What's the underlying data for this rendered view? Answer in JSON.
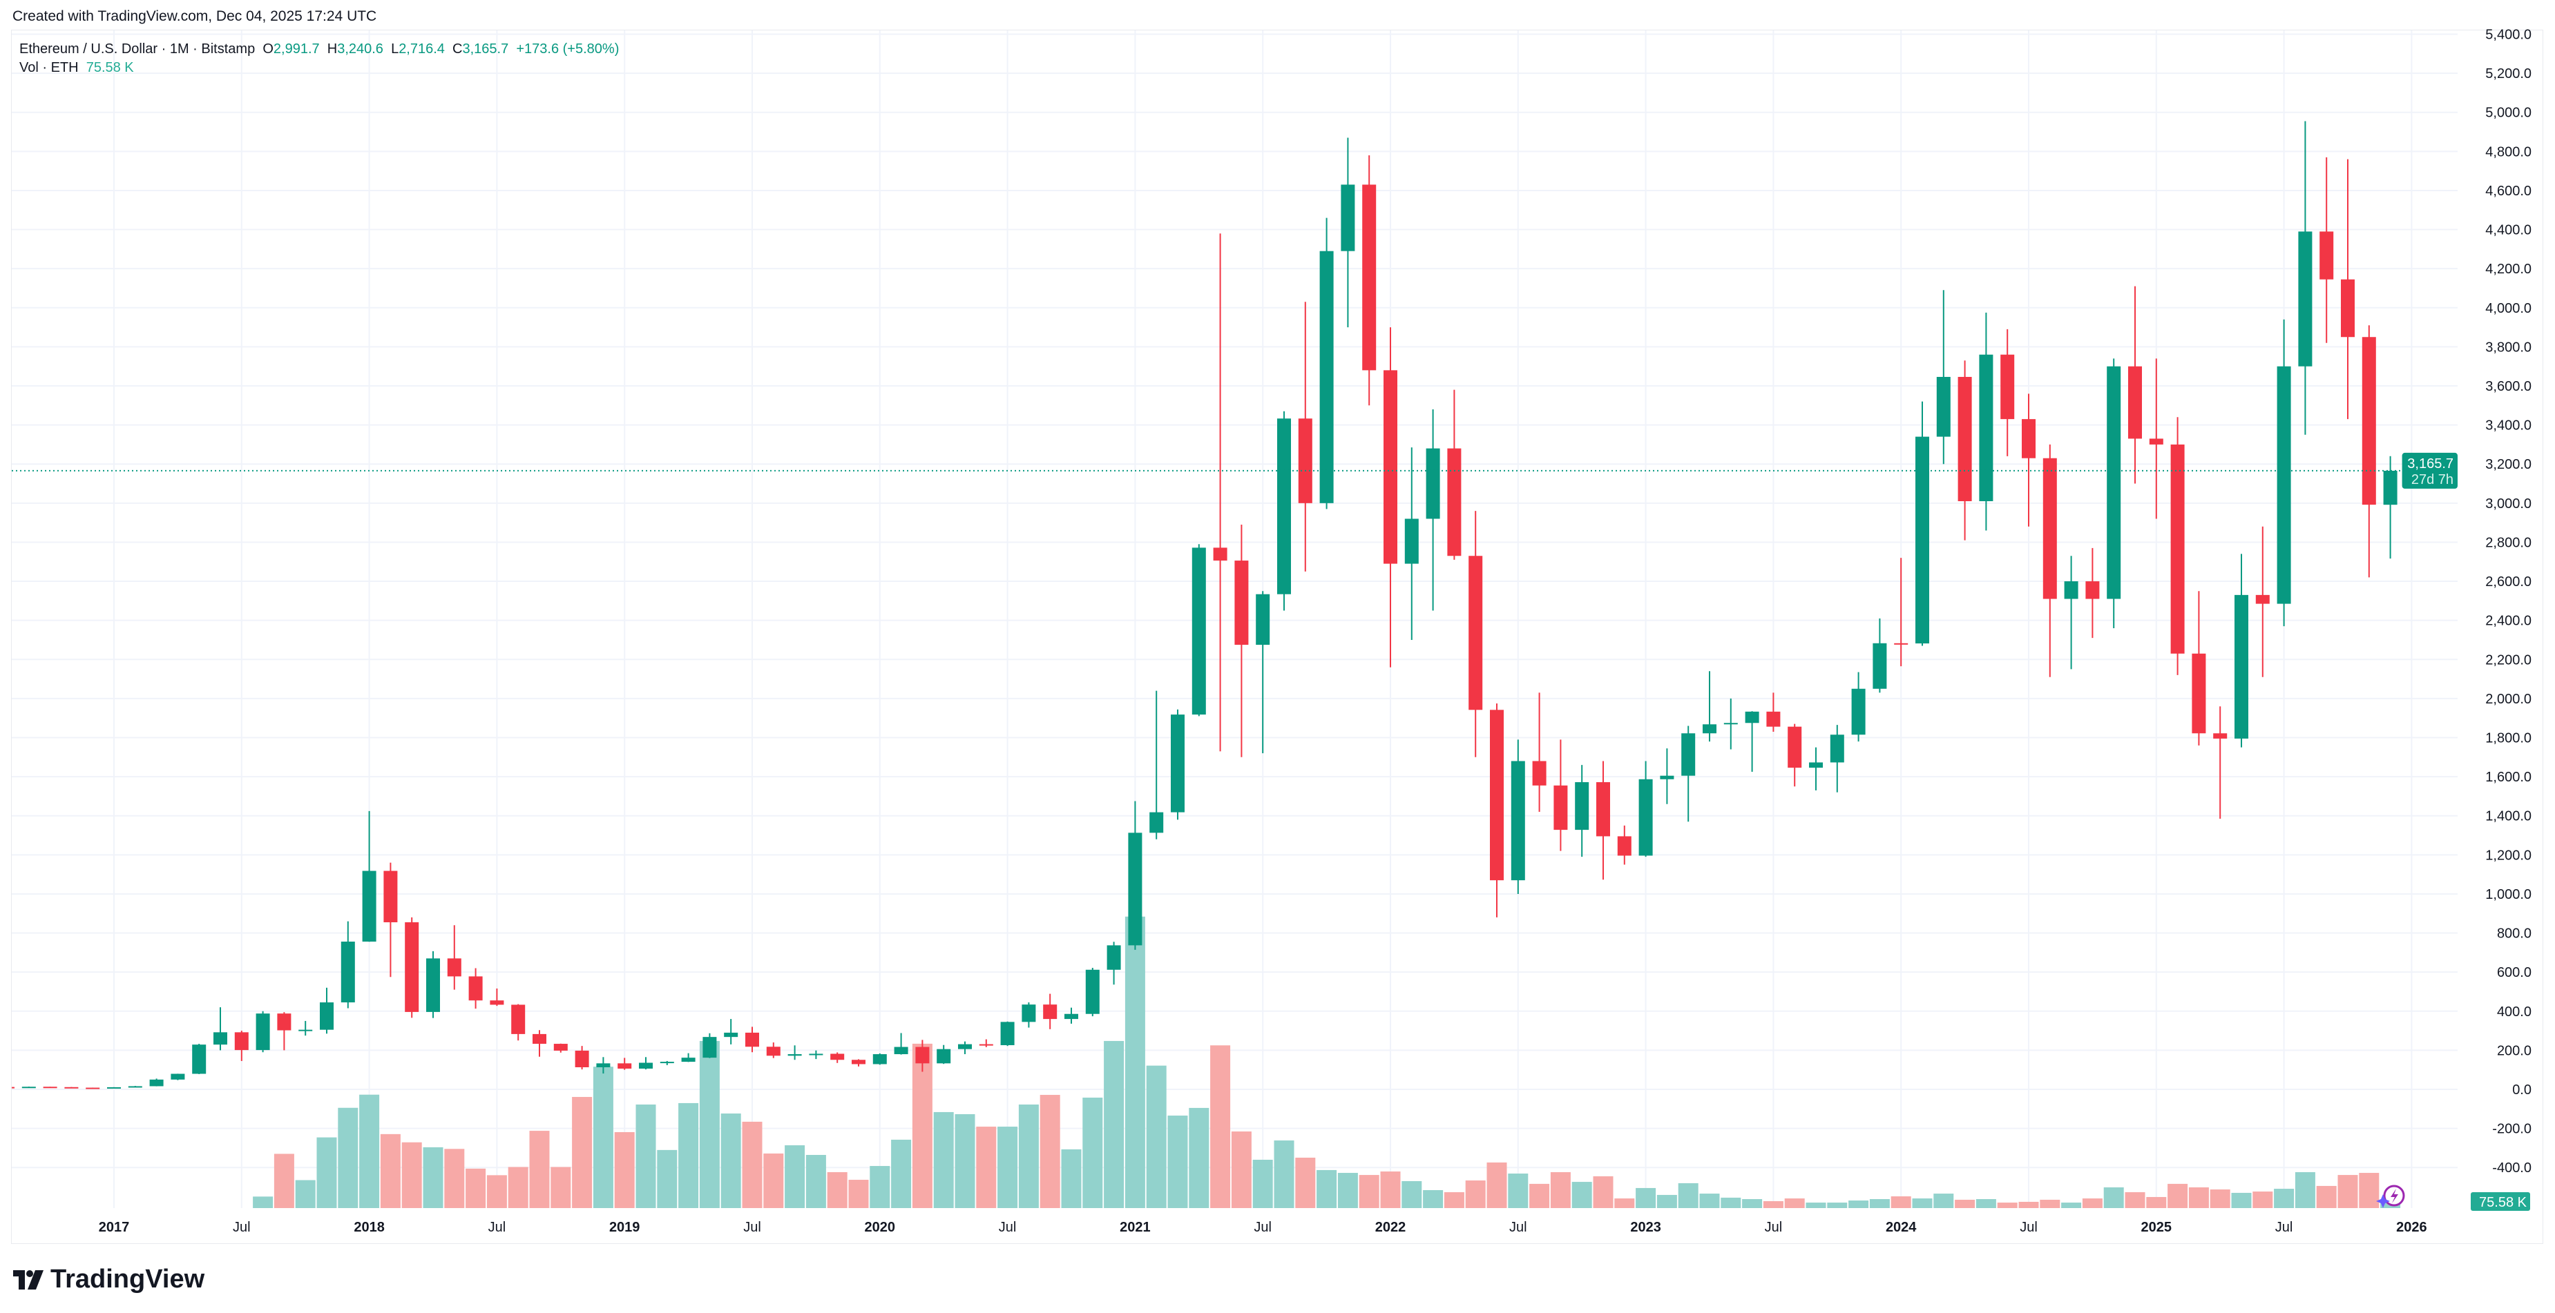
{
  "header": {
    "created": "Created with TradingView.com, Dec 04, 2025 17:24 UTC"
  },
  "legend": {
    "symbol": "Ethereum / U.S. Dollar · 1M · Bitstamp",
    "o_label": "O",
    "o": "2,991.7",
    "h_label": "H",
    "h": "3,240.6",
    "l_label": "L",
    "l": "2,716.4",
    "c_label": "C",
    "c": "3,165.7",
    "change": "+173.6 (+5.80%)",
    "vol_label": "Vol · ETH",
    "vol": "75.58 K"
  },
  "price_tag": {
    "price": "3,165.7",
    "countdown": "27d 7h"
  },
  "volume_tag": "75.58 K",
  "brand": "TradingView",
  "colors": {
    "up": "#089981",
    "down": "#f23645",
    "vol_up": "#92d2cc",
    "vol_down": "#f7a9a7",
    "grid": "#f0f3fa"
  },
  "chart_data": {
    "type": "candlestick",
    "interval": "1M",
    "ylim": [
      -400,
      5400
    ],
    "grid": true,
    "y_ticks": [
      "-400.0",
      "-200.0",
      "0.0",
      "200.0",
      "400.0",
      "600.0",
      "800.0",
      "1,000.0",
      "1,200.0",
      "1,400.0",
      "1,600.0",
      "1,800.0",
      "2,000.0",
      "2,200.0",
      "2,400.0",
      "2,600.0",
      "2,800.0",
      "3,000.0",
      "3,200.0",
      "3,400.0",
      "3,600.0",
      "3,800.0",
      "4,000.0",
      "4,200.0",
      "4,400.0",
      "4,600.0",
      "4,800.0",
      "5,000.0",
      "5,200.0",
      "5,400.0"
    ],
    "x_ticks": [
      {
        "label": "2017",
        "date": "2017-01",
        "major": true
      },
      {
        "label": "Jul",
        "date": "2017-07"
      },
      {
        "label": "2018",
        "date": "2018-01",
        "major": true
      },
      {
        "label": "Jul",
        "date": "2018-07"
      },
      {
        "label": "2019",
        "date": "2019-01",
        "major": true
      },
      {
        "label": "Jul",
        "date": "2019-07"
      },
      {
        "label": "2020",
        "date": "2020-01",
        "major": true
      },
      {
        "label": "Jul",
        "date": "2020-07"
      },
      {
        "label": "2021",
        "date": "2021-01",
        "major": true
      },
      {
        "label": "Jul",
        "date": "2021-07"
      },
      {
        "label": "2022",
        "date": "2022-01",
        "major": true
      },
      {
        "label": "Jul",
        "date": "2022-07"
      },
      {
        "label": "2023",
        "date": "2023-01",
        "major": true
      },
      {
        "label": "Jul",
        "date": "2023-07"
      },
      {
        "label": "2024",
        "date": "2024-01",
        "major": true
      },
      {
        "label": "Jul",
        "date": "2024-07"
      },
      {
        "label": "2025",
        "date": "2025-01",
        "major": true
      },
      {
        "label": "Jul",
        "date": "2025-07"
      },
      {
        "label": "2026",
        "date": "2026-01",
        "major": true
      }
    ],
    "columns": [
      "date",
      "open",
      "high",
      "low",
      "close",
      "volume_k"
    ],
    "candles": [
      [
        "2016-08",
        12,
        12.5,
        10.6,
        11.5,
        null
      ],
      [
        "2016-09",
        11.5,
        14,
        11.3,
        13.2,
        null
      ],
      [
        "2016-10",
        13.2,
        13.2,
        10.5,
        11.4,
        null
      ],
      [
        "2016-11",
        11.4,
        11.8,
        8.1,
        8.6,
        null
      ],
      [
        "2016-12",
        8.6,
        8.8,
        6.9,
        8.0,
        null
      ],
      [
        "2017-01",
        8.0,
        11.1,
        7.9,
        10.7,
        null
      ],
      [
        "2017-02",
        10.7,
        17.5,
        10.3,
        16.0,
        null
      ],
      [
        "2017-03",
        16,
        55,
        15.5,
        50,
        null
      ],
      [
        "2017-04",
        50,
        80,
        47,
        79.5,
        null
      ],
      [
        "2017-05",
        79.5,
        233,
        78,
        229,
        null
      ],
      [
        "2017-06",
        229,
        420,
        200,
        292,
        null
      ],
      [
        "2017-07",
        292,
        300,
        145,
        201,
        null
      ],
      [
        "2017-08",
        201,
        400,
        190,
        388,
        105
      ],
      [
        "2017-09",
        388,
        395,
        200,
        302,
        495
      ],
      [
        "2017-10",
        302,
        350,
        275,
        305,
        255
      ],
      [
        "2017-11",
        305,
        520,
        285,
        445,
        645
      ],
      [
        "2017-12",
        445,
        860,
        415,
        756,
        915
      ],
      [
        "2018-01",
        756,
        1424,
        755,
        1118,
        1035
      ],
      [
        "2018-02",
        1118,
        1160,
        575,
        855,
        675
      ],
      [
        "2018-03",
        855,
        880,
        366,
        396,
        600
      ],
      [
        "2018-04",
        396,
        707,
        365,
        670,
        555
      ],
      [
        "2018-05",
        670,
        840,
        510,
        578,
        540
      ],
      [
        "2018-06",
        578,
        620,
        413,
        455,
        360
      ],
      [
        "2018-07",
        455,
        516,
        427,
        433,
        300
      ],
      [
        "2018-08",
        433,
        436,
        250,
        283,
        375
      ],
      [
        "2018-09",
        283,
        303,
        167,
        233,
        705
      ],
      [
        "2018-10",
        233,
        234,
        188,
        198,
        375
      ],
      [
        "2018-11",
        198,
        222,
        102,
        113,
        1014
      ],
      [
        "2018-12",
        113,
        165,
        81,
        133,
        1290
      ],
      [
        "2019-01",
        133,
        161,
        100,
        106,
        693
      ],
      [
        "2019-02",
        106,
        165,
        102,
        136,
        945
      ],
      [
        "2019-03",
        136,
        145,
        124,
        141,
        530
      ],
      [
        "2019-04",
        141,
        185,
        140,
        162,
        958
      ],
      [
        "2019-05",
        162,
        287,
        160,
        268,
        1525
      ],
      [
        "2019-06",
        268,
        360,
        230,
        290,
        863
      ],
      [
        "2019-07",
        290,
        320,
        190,
        218,
        788
      ],
      [
        "2019-08",
        218,
        240,
        160,
        172,
        498
      ],
      [
        "2019-09",
        172,
        225,
        151,
        180,
        573
      ],
      [
        "2019-10",
        180,
        199,
        155,
        182,
        485
      ],
      [
        "2019-11",
        182,
        189,
        135,
        151,
        328
      ],
      [
        "2019-12",
        151,
        154,
        117,
        129,
        258
      ],
      [
        "2020-01",
        129,
        184,
        126,
        180,
        384
      ],
      [
        "2020-02",
        180,
        288,
        178,
        217,
        624
      ],
      [
        "2020-03",
        217,
        253,
        90,
        133,
        1500
      ],
      [
        "2020-04",
        133,
        227,
        130,
        206,
        876
      ],
      [
        "2020-05",
        206,
        245,
        180,
        231,
        857
      ],
      [
        "2020-06",
        231,
        256,
        216,
        226,
        743
      ],
      [
        "2020-07",
        226,
        347,
        222,
        345,
        743
      ],
      [
        "2020-08",
        345,
        445,
        316,
        434,
        945
      ],
      [
        "2020-09",
        434,
        489,
        308,
        360,
        1033
      ],
      [
        "2020-10",
        360,
        418,
        336,
        386,
        536
      ],
      [
        "2020-11",
        386,
        622,
        374,
        612,
        1008
      ],
      [
        "2020-12",
        612,
        755,
        536,
        737,
        1525
      ],
      [
        "2021-01",
        737,
        1475,
        714,
        1313,
        2660
      ],
      [
        "2021-02",
        1313,
        2040,
        1280,
        1418,
        1300
      ],
      [
        "2021-03",
        1418,
        1944,
        1380,
        1918,
        844
      ],
      [
        "2021-04",
        1918,
        2790,
        1910,
        2772,
        914
      ],
      [
        "2021-05",
        2772,
        4380,
        1730,
        2706,
        1485
      ],
      [
        "2021-06",
        2706,
        2890,
        1700,
        2275,
        699
      ],
      [
        "2021-07",
        2275,
        2550,
        1720,
        2534,
        441
      ],
      [
        "2021-08",
        2534,
        3470,
        2450,
        3433,
        617
      ],
      [
        "2021-09",
        3433,
        4030,
        2650,
        3000,
        460
      ],
      [
        "2021-10",
        3000,
        4460,
        2970,
        4290,
        347
      ],
      [
        "2021-11",
        4290,
        4870,
        3900,
        4630,
        321
      ],
      [
        "2021-12",
        4630,
        4780,
        3500,
        3680,
        302
      ],
      [
        "2022-01",
        3680,
        3900,
        2160,
        2690,
        334
      ],
      [
        "2022-02",
        2690,
        3285,
        2300,
        2920,
        246
      ],
      [
        "2022-03",
        2920,
        3480,
        2450,
        3280,
        164
      ],
      [
        "2022-04",
        3280,
        3580,
        2710,
        2730,
        145
      ],
      [
        "2022-05",
        2730,
        2960,
        1700,
        1942,
        252
      ],
      [
        "2022-06",
        1942,
        1975,
        880,
        1070,
        416
      ],
      [
        "2022-07",
        1070,
        1790,
        1000,
        1680,
        315
      ],
      [
        "2022-08",
        1680,
        2030,
        1420,
        1555,
        221
      ],
      [
        "2022-09",
        1555,
        1790,
        1220,
        1328,
        328
      ],
      [
        "2022-10",
        1328,
        1660,
        1190,
        1572,
        239
      ],
      [
        "2022-11",
        1572,
        1680,
        1073,
        1295,
        290
      ],
      [
        "2022-12",
        1295,
        1350,
        1150,
        1196,
        88
      ],
      [
        "2023-01",
        1196,
        1680,
        1190,
        1587,
        183
      ],
      [
        "2023-02",
        1587,
        1745,
        1460,
        1605,
        120
      ],
      [
        "2023-03",
        1605,
        1860,
        1370,
        1822,
        227
      ],
      [
        "2023-04",
        1822,
        2140,
        1780,
        1868,
        132
      ],
      [
        "2023-05",
        1868,
        2000,
        1740,
        1875,
        95
      ],
      [
        "2023-06",
        1875,
        1935,
        1625,
        1933,
        82
      ],
      [
        "2023-07",
        1933,
        2030,
        1830,
        1856,
        63
      ],
      [
        "2023-08",
        1856,
        1870,
        1550,
        1646,
        88
      ],
      [
        "2023-09",
        1646,
        1750,
        1530,
        1673,
        50
      ],
      [
        "2023-10",
        1673,
        1865,
        1520,
        1815,
        50
      ],
      [
        "2023-11",
        1815,
        2135,
        1780,
        2050,
        69
      ],
      [
        "2023-12",
        2050,
        2410,
        2030,
        2283,
        82
      ],
      [
        "2024-01",
        2283,
        2720,
        2165,
        2282,
        107
      ],
      [
        "2024-02",
        2282,
        3520,
        2270,
        3340,
        88
      ],
      [
        "2024-03",
        3340,
        4090,
        3200,
        3646,
        132
      ],
      [
        "2024-04",
        3646,
        3730,
        2810,
        3010,
        76
      ],
      [
        "2024-05",
        3010,
        3975,
        2860,
        3760,
        82
      ],
      [
        "2024-06",
        3760,
        3890,
        3240,
        3430,
        50
      ],
      [
        "2024-07",
        3430,
        3560,
        2880,
        3230,
        57
      ],
      [
        "2024-08",
        3230,
        3300,
        2110,
        2510,
        76
      ],
      [
        "2024-09",
        2510,
        2730,
        2150,
        2600,
        50
      ],
      [
        "2024-10",
        2600,
        2770,
        2310,
        2510,
        88
      ],
      [
        "2024-11",
        2510,
        3740,
        2360,
        3700,
        189
      ],
      [
        "2024-12",
        3700,
        4110,
        3100,
        3330,
        145
      ],
      [
        "2025-01",
        3330,
        3740,
        2920,
        3300,
        101
      ],
      [
        "2025-02",
        3300,
        3440,
        2120,
        2230,
        221
      ],
      [
        "2025-03",
        2230,
        2550,
        1760,
        1822,
        189
      ],
      [
        "2025-04",
        1822,
        1960,
        1385,
        1795,
        170
      ],
      [
        "2025-05",
        1795,
        2740,
        1750,
        2530,
        139
      ],
      [
        "2025-06",
        2530,
        2880,
        2110,
        2485,
        151
      ],
      [
        "2025-07",
        2485,
        3940,
        2370,
        3700,
        176
      ],
      [
        "2025-08",
        3700,
        4955,
        3350,
        4390,
        328
      ],
      [
        "2025-09",
        4390,
        4770,
        3820,
        4145,
        202
      ],
      [
        "2025-10",
        4145,
        4760,
        3430,
        3850,
        302
      ],
      [
        "2025-11",
        3850,
        3910,
        2620,
        2992,
        321
      ],
      [
        "2025-12",
        2991.7,
        3240.6,
        2716.4,
        3165.7,
        75.58
      ]
    ]
  }
}
